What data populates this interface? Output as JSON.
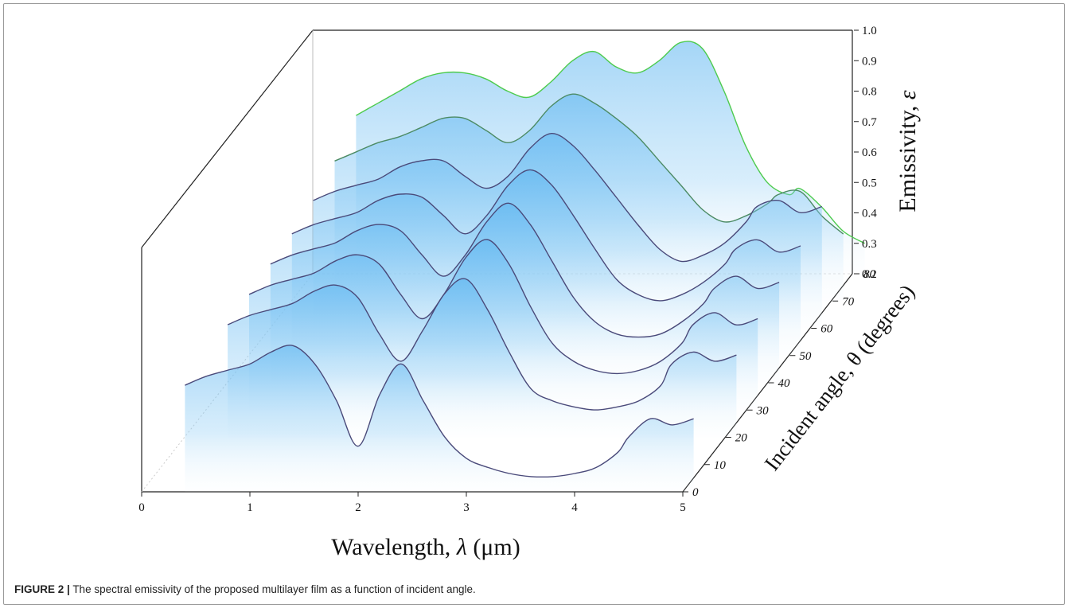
{
  "caption": {
    "label": "FIGURE 2 |",
    "text": "The spectral emissivity of the proposed multilayer film as a function of incident angle."
  },
  "chart_data": {
    "type": "line",
    "projection": "3d-waterfall",
    "xlabel_prefix": "Wavelength, ",
    "xlabel_symbol": "λ",
    "xlabel_suffix": " (μm)",
    "zlabel_prefix": "Incident angle, ",
    "zlabel_symbol": "θ",
    "zlabel_suffix": " (degrees)",
    "ylabel_prefix": "Emissivity, ",
    "ylabel_symbol": "ε",
    "xlim": [
      0,
      5
    ],
    "ylim": [
      0.2,
      1.0
    ],
    "zlim": [
      0,
      80
    ],
    "x_ticks": [
      "0",
      "1",
      "2",
      "3",
      "4",
      "5"
    ],
    "y_ticks": [
      "0.2",
      "0.3",
      "0.4",
      "0.5",
      "0.6",
      "0.7",
      "0.8",
      "0.9",
      "1.0"
    ],
    "z_ticks": [
      "0",
      "10",
      "20",
      "30",
      "40",
      "50",
      "60",
      "70",
      "80"
    ],
    "colors": {
      "low_angle": "#4a4a7a",
      "high_angle": "#4ecb4e",
      "fill": "#5ab4f0"
    },
    "series": [
      {
        "angle": 0,
        "x": [
          0.4,
          0.6,
          0.8,
          1.0,
          1.2,
          1.4,
          1.6,
          1.8,
          2.0,
          2.2,
          2.4,
          2.6,
          2.8,
          3.0,
          3.2,
          3.4,
          3.6,
          3.8,
          4.0,
          4.2,
          4.4,
          4.5,
          4.7,
          4.9,
          5.1
        ],
        "y": [
          0.55,
          0.58,
          0.6,
          0.62,
          0.66,
          0.68,
          0.62,
          0.5,
          0.35,
          0.52,
          0.62,
          0.5,
          0.38,
          0.31,
          0.28,
          0.26,
          0.25,
          0.25,
          0.26,
          0.28,
          0.33,
          0.38,
          0.44,
          0.42,
          0.44
        ]
      },
      {
        "angle": 20,
        "x": [
          0.4,
          0.6,
          0.8,
          1.0,
          1.2,
          1.4,
          1.6,
          1.8,
          2.0,
          2.2,
          2.4,
          2.6,
          2.8,
          3.0,
          3.2,
          3.4,
          3.6,
          3.8,
          4.0,
          4.2,
          4.4,
          4.5,
          4.7,
          4.9,
          5.1
        ],
        "y": [
          0.57,
          0.6,
          0.62,
          0.64,
          0.68,
          0.7,
          0.66,
          0.54,
          0.45,
          0.55,
          0.67,
          0.72,
          0.62,
          0.48,
          0.36,
          0.32,
          0.3,
          0.29,
          0.3,
          0.32,
          0.37,
          0.44,
          0.48,
          0.45,
          0.47
        ]
      },
      {
        "angle": 30,
        "x": [
          0.4,
          0.6,
          0.8,
          1.0,
          1.2,
          1.4,
          1.6,
          1.8,
          2.0,
          2.2,
          2.4,
          2.6,
          2.8,
          3.0,
          3.2,
          3.4,
          3.6,
          3.8,
          4.0,
          4.2,
          4.4,
          4.5,
          4.7,
          4.9,
          5.1
        ],
        "y": [
          0.58,
          0.61,
          0.63,
          0.65,
          0.69,
          0.71,
          0.68,
          0.58,
          0.5,
          0.58,
          0.7,
          0.76,
          0.68,
          0.54,
          0.42,
          0.36,
          0.33,
          0.32,
          0.33,
          0.36,
          0.42,
          0.48,
          0.52,
          0.48,
          0.5
        ]
      },
      {
        "angle": 40,
        "x": [
          0.4,
          0.6,
          0.8,
          1.0,
          1.2,
          1.4,
          1.6,
          1.8,
          2.0,
          2.2,
          2.4,
          2.6,
          2.8,
          3.0,
          3.2,
          3.4,
          3.6,
          3.8,
          4.0,
          4.2,
          4.4,
          4.5,
          4.7,
          4.9,
          5.1
        ],
        "y": [
          0.59,
          0.62,
          0.64,
          0.66,
          0.7,
          0.72,
          0.7,
          0.62,
          0.55,
          0.62,
          0.73,
          0.79,
          0.72,
          0.6,
          0.48,
          0.4,
          0.36,
          0.35,
          0.36,
          0.4,
          0.46,
          0.51,
          0.55,
          0.51,
          0.53
        ]
      },
      {
        "angle": 50,
        "x": [
          0.4,
          0.6,
          0.8,
          1.0,
          1.2,
          1.4,
          1.6,
          1.8,
          2.0,
          2.2,
          2.4,
          2.6,
          2.8,
          3.0,
          3.2,
          3.4,
          3.6,
          3.8,
          4.0,
          4.2,
          4.4,
          4.5,
          4.7,
          4.9,
          5.1
        ],
        "y": [
          0.6,
          0.63,
          0.65,
          0.67,
          0.71,
          0.73,
          0.72,
          0.66,
          0.6,
          0.66,
          0.76,
          0.81,
          0.76,
          0.66,
          0.55,
          0.45,
          0.4,
          0.38,
          0.4,
          0.44,
          0.5,
          0.55,
          0.58,
          0.54,
          0.56
        ]
      },
      {
        "angle": 60,
        "x": [
          0.4,
          0.6,
          0.8,
          1.0,
          1.2,
          1.4,
          1.6,
          1.8,
          2.0,
          2.2,
          2.4,
          2.6,
          2.8,
          3.0,
          3.2,
          3.4,
          3.6,
          3.8,
          4.0,
          4.2,
          4.4,
          4.5,
          4.7,
          4.9,
          5.1
        ],
        "y": [
          0.62,
          0.65,
          0.67,
          0.69,
          0.73,
          0.75,
          0.75,
          0.7,
          0.66,
          0.7,
          0.79,
          0.84,
          0.8,
          0.72,
          0.63,
          0.54,
          0.46,
          0.42,
          0.44,
          0.48,
          0.55,
          0.6,
          0.62,
          0.58,
          0.6
        ]
      },
      {
        "angle": 70,
        "x": [
          0.4,
          0.6,
          0.8,
          1.0,
          1.2,
          1.4,
          1.6,
          1.8,
          2.0,
          2.2,
          2.4,
          2.6,
          2.8,
          3.0,
          3.2,
          3.4,
          3.6,
          3.8,
          4.0,
          4.2,
          4.4,
          4.5,
          4.7,
          4.9,
          5.1
        ],
        "y": [
          0.66,
          0.69,
          0.72,
          0.74,
          0.77,
          0.8,
          0.8,
          0.76,
          0.72,
          0.76,
          0.84,
          0.88,
          0.85,
          0.8,
          0.74,
          0.66,
          0.58,
          0.5,
          0.46,
          0.48,
          0.52,
          0.55,
          0.56,
          0.48,
          0.42
        ]
      },
      {
        "angle": 80,
        "x": [
          0.4,
          0.6,
          0.8,
          1.0,
          1.2,
          1.4,
          1.6,
          1.8,
          2.0,
          2.2,
          2.4,
          2.6,
          2.8,
          3.0,
          3.2,
          3.4,
          3.6,
          3.8,
          4.0,
          4.2,
          4.4,
          4.5,
          4.7,
          4.9,
          5.1
        ],
        "y": [
          0.72,
          0.76,
          0.8,
          0.84,
          0.86,
          0.86,
          0.84,
          0.8,
          0.78,
          0.83,
          0.9,
          0.93,
          0.88,
          0.86,
          0.9,
          0.96,
          0.94,
          0.8,
          0.62,
          0.5,
          0.46,
          0.48,
          0.42,
          0.34,
          0.3
        ]
      }
    ]
  }
}
